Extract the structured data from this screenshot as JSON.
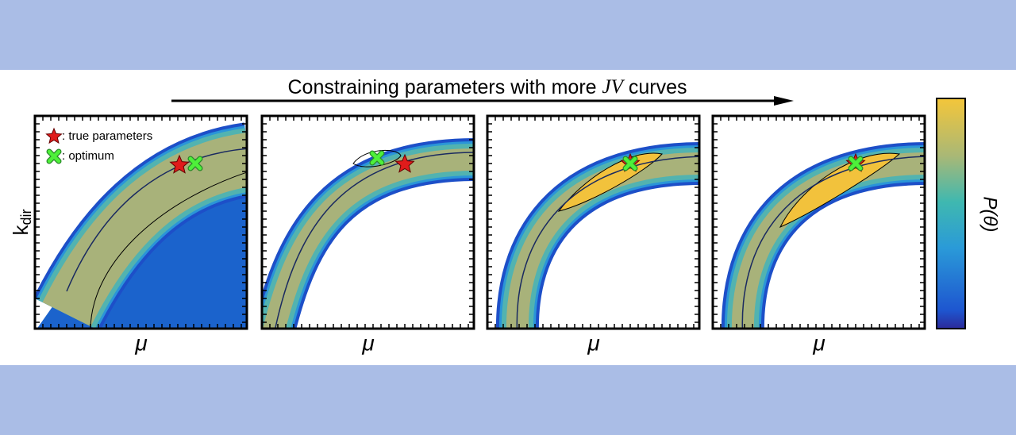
{
  "title": {
    "before": "Constraining parameters with more",
    "italic": "JV",
    "after": "curves"
  },
  "legend": [
    ": true parameters",
    ": optimum"
  ],
  "y_label": {
    "main": "k",
    "sub": "dir"
  },
  "x_labels": [
    "μ",
    "μ",
    "μ",
    "μ"
  ],
  "colorbar_label": "P(θ)"
}
